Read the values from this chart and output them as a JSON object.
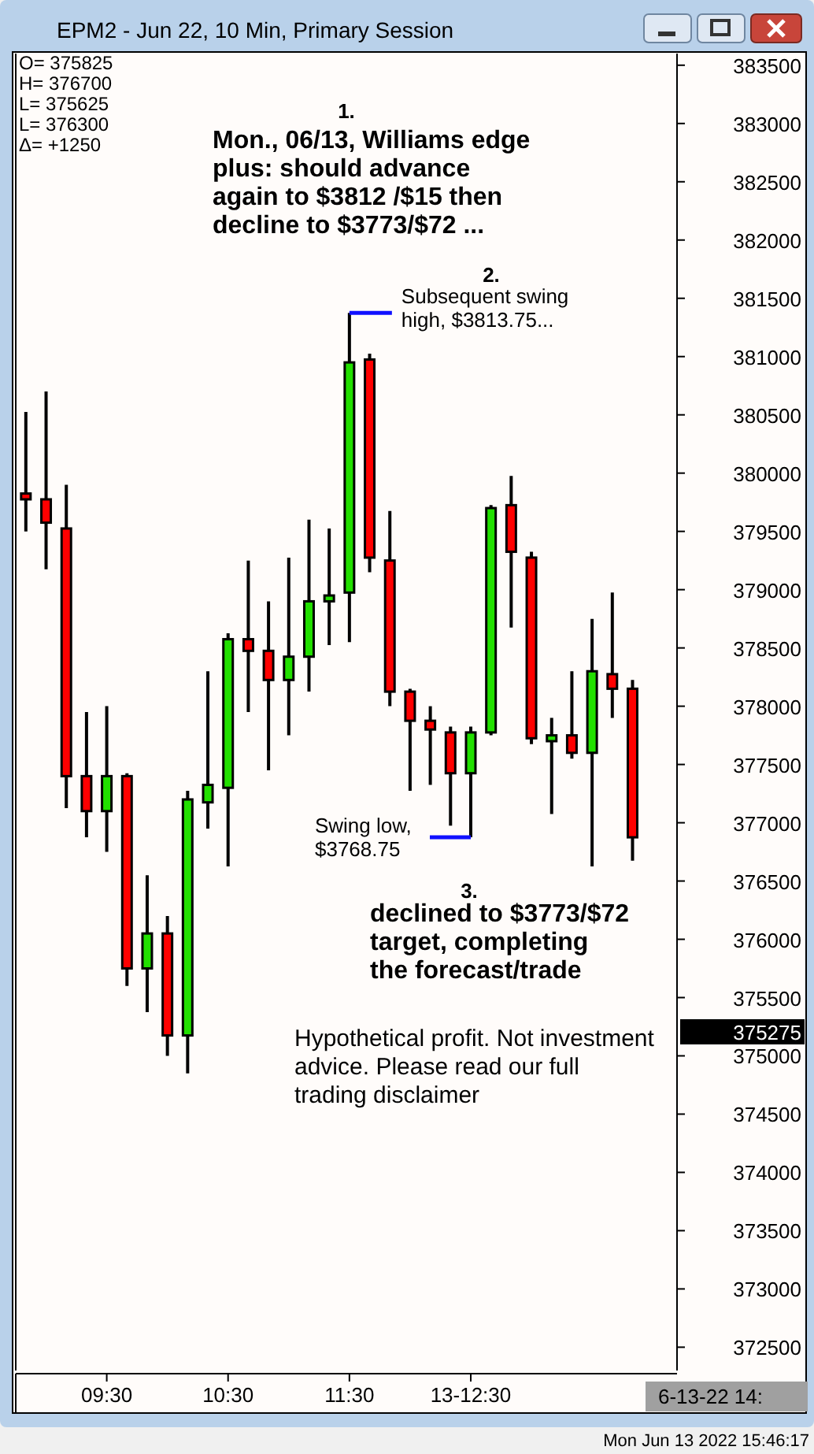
{
  "chart_data": {
    "type": "candlestick",
    "title": "EPM2 - Jun 22, 10 Min, Primary Session",
    "x": [
      8.8333,
      9,
      9.1667,
      9.3333,
      9.5,
      9.6667,
      9.8333,
      10,
      10.1667,
      10.3333,
      10.5,
      10.6667,
      10.8333,
      11,
      11.1667,
      11.3333,
      11.5,
      11.6667,
      11.8333,
      12,
      12.1667,
      12.3333,
      12.5,
      12.6667,
      12.8333,
      13,
      13.1667,
      13.3333,
      13.5,
      13.6667,
      13.8333
    ],
    "ohlc": [
      [
        379825,
        380525,
        379500,
        379775
      ],
      [
        379775,
        380700,
        379175,
        379575
      ],
      [
        379525,
        379900,
        377125,
        377400
      ],
      [
        377400,
        377950,
        376875,
        377100
      ],
      [
        377100,
        378000,
        376750,
        377400
      ],
      [
        377400,
        377425,
        375600,
        375750
      ],
      [
        375750,
        376550,
        375375,
        376050
      ],
      [
        376050,
        376200,
        375000,
        375175
      ],
      [
        375175,
        377275,
        374850,
        377200
      ],
      [
        377175,
        378300,
        376950,
        377325
      ],
      [
        377300,
        378625,
        376625,
        378575
      ],
      [
        378575,
        379250,
        377950,
        378475
      ],
      [
        378475,
        378900,
        377450,
        378225
      ],
      [
        378225,
        379275,
        377750,
        378425
      ],
      [
        378425,
        379600,
        378125,
        378900
      ],
      [
        378900,
        379525,
        378525,
        378950
      ],
      [
        378975,
        381375,
        378550,
        380950
      ],
      [
        380975,
        381025,
        379150,
        379275
      ],
      [
        379250,
        379675,
        378000,
        378125
      ],
      [
        378125,
        378150,
        377275,
        377875
      ],
      [
        377875,
        378000,
        377325,
        377800
      ],
      [
        377775,
        377825,
        376975,
        377425
      ],
      [
        377425,
        377825,
        376875,
        377775
      ],
      [
        377775,
        379725,
        377750,
        379700
      ],
      [
        379725,
        379975,
        378675,
        379325
      ],
      [
        379275,
        379325,
        377675,
        377725
      ],
      [
        377700,
        377900,
        377075,
        377750
      ],
      [
        377750,
        378300,
        377550,
        377600
      ],
      [
        377600,
        378750,
        376625,
        378300
      ],
      [
        378275,
        378975,
        377900,
        378150
      ],
      [
        378150,
        378225,
        376675,
        376875
      ]
    ],
    "colors": [
      "#ff0000",
      "#ff0000",
      "#ff0000",
      "#ff0000",
      "#22e000",
      "#ff0000",
      "#22e000",
      "#ff0000",
      "#22e000",
      "#22e000",
      "#22e000",
      "#ff0000",
      "#ff0000",
      "#22e000",
      "#22e000",
      "#22e000",
      "#22e000",
      "#ff0000",
      "#ff0000",
      "#ff0000",
      "#ff0000",
      "#ff0000",
      "#22e000",
      "#22e000",
      "#ff0000",
      "#ff0000",
      "#22e000",
      "#ff0000",
      "#22e000",
      "#ff0000",
      "#ff0000"
    ],
    "xlim": [
      8.75,
      14.2
    ],
    "xticks": [
      {
        "value": 9.5,
        "label": "09:30"
      },
      {
        "value": 10.5,
        "label": "10:30"
      },
      {
        "value": 11.5,
        "label": "11:30"
      },
      {
        "value": 12.5,
        "label": "13-12:30"
      }
    ],
    "ylim": [
      372300,
      383600
    ],
    "yticks": [
      372500,
      373000,
      373500,
      374000,
      374500,
      375000,
      375500,
      376000,
      376500,
      377000,
      377500,
      378000,
      378500,
      379000,
      379500,
      380000,
      380500,
      381000,
      381500,
      382000,
      382500,
      383000,
      383500
    ],
    "grid": false,
    "annotations": [
      "O=  375825",
      "H=  376700",
      "L=  375625",
      "L=  376300",
      "Δ=    +1250",
      "1.",
      "Mon., 06/13, Williams edge plus: should advance again to $3812 /$15 then decline to $3773/$72 ...",
      "2.",
      {
        "text": "Subsequent swing high, $3813.75...",
        "x": 11.5,
        "y": 381375
      },
      {
        "text": "Swing low, $3768.75",
        "x": 12.5,
        "y": 376875
      },
      "3.",
      "declined to $3773/$72 target, completing the forecast/trade",
      "Hypothetical profit. Not investment advice. Please read our full trading disclaimer",
      "375275",
      "6-13-22 14:",
      "Mon Jun 13 2022 15:46:17"
    ]
  }
}
